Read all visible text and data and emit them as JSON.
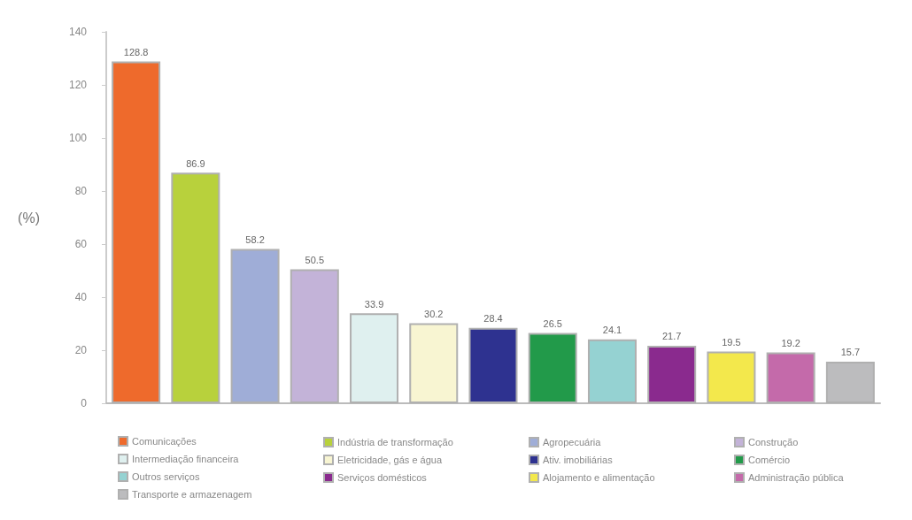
{
  "chart_data": {
    "type": "bar",
    "ylabel": "(%)",
    "categories": [
      null,
      null,
      null,
      null,
      null,
      null,
      null,
      null,
      null,
      null,
      null,
      null,
      null
    ],
    "series": [
      {
        "name": "Comunicações",
        "color": "#ee6a2c",
        "values": [
          128.8,
          null,
          null,
          null,
          null,
          null,
          null,
          null,
          null,
          null,
          null,
          null,
          null
        ]
      },
      {
        "name": "Indústria de transformação",
        "color": "#b8d13c",
        "values": [
          null,
          86.9,
          null,
          null,
          null,
          null,
          null,
          null,
          null,
          null,
          null,
          null,
          null
        ]
      },
      {
        "name": "Agropecuária",
        "color": "#9fadd7",
        "values": [
          null,
          null,
          58.2,
          null,
          null,
          null,
          null,
          null,
          null,
          null,
          null,
          null,
          null
        ]
      },
      {
        "name": "Construção",
        "color": "#c3b3d8",
        "values": [
          null,
          null,
          null,
          50.5,
          null,
          null,
          null,
          null,
          null,
          null,
          null,
          null,
          null
        ]
      },
      {
        "name": "Intermediação financeira",
        "color": "#dff0ef",
        "values": [
          null,
          null,
          null,
          null,
          33.9,
          null,
          null,
          null,
          null,
          null,
          null,
          null,
          null
        ]
      },
      {
        "name": "Eletricidade, gás e água",
        "color": "#f8f5d2",
        "values": [
          null,
          null,
          null,
          null,
          null,
          30.2,
          null,
          null,
          null,
          null,
          null,
          null,
          null
        ]
      },
      {
        "name": "Ativ. imobiliárias",
        "color": "#2e3290",
        "values": [
          null,
          null,
          null,
          null,
          null,
          null,
          28.4,
          null,
          null,
          null,
          null,
          null,
          null
        ]
      },
      {
        "name": "Comércio",
        "color": "#229a4a",
        "values": [
          null,
          null,
          null,
          null,
          null,
          null,
          null,
          26.5,
          null,
          null,
          null,
          null,
          null
        ]
      },
      {
        "name": "Outros serviços",
        "color": "#95d2d2",
        "values": [
          null,
          null,
          null,
          null,
          null,
          null,
          null,
          null,
          24.1,
          null,
          null,
          null,
          null
        ]
      },
      {
        "name": "Serviços domésticos",
        "color": "#8a2a8e",
        "values": [
          null,
          null,
          null,
          null,
          null,
          null,
          null,
          null,
          null,
          21.7,
          null,
          null,
          null
        ]
      },
      {
        "name": "Alojamento e alimentação",
        "color": "#f3e84c",
        "values": [
          null,
          null,
          null,
          null,
          null,
          null,
          null,
          null,
          null,
          null,
          19.5,
          null,
          null
        ]
      },
      {
        "name": "Administração pública",
        "color": "#c46aaa",
        "values": [
          null,
          null,
          null,
          null,
          null,
          null,
          null,
          null,
          null,
          null,
          null,
          19.2,
          null
        ]
      },
      {
        "name": "Transporte e armazenagem",
        "color": "#bcbcbe",
        "values": [
          null,
          null,
          null,
          null,
          null,
          null,
          null,
          null,
          null,
          null,
          null,
          null,
          15.7
        ]
      }
    ],
    "ylim": [
      0,
      140
    ],
    "yticks": [
      0,
      20,
      40,
      60,
      80,
      100,
      120,
      140
    ],
    "data_labels": true,
    "tick_labels": "y",
    "legend": "bottom",
    "grid": false
  }
}
